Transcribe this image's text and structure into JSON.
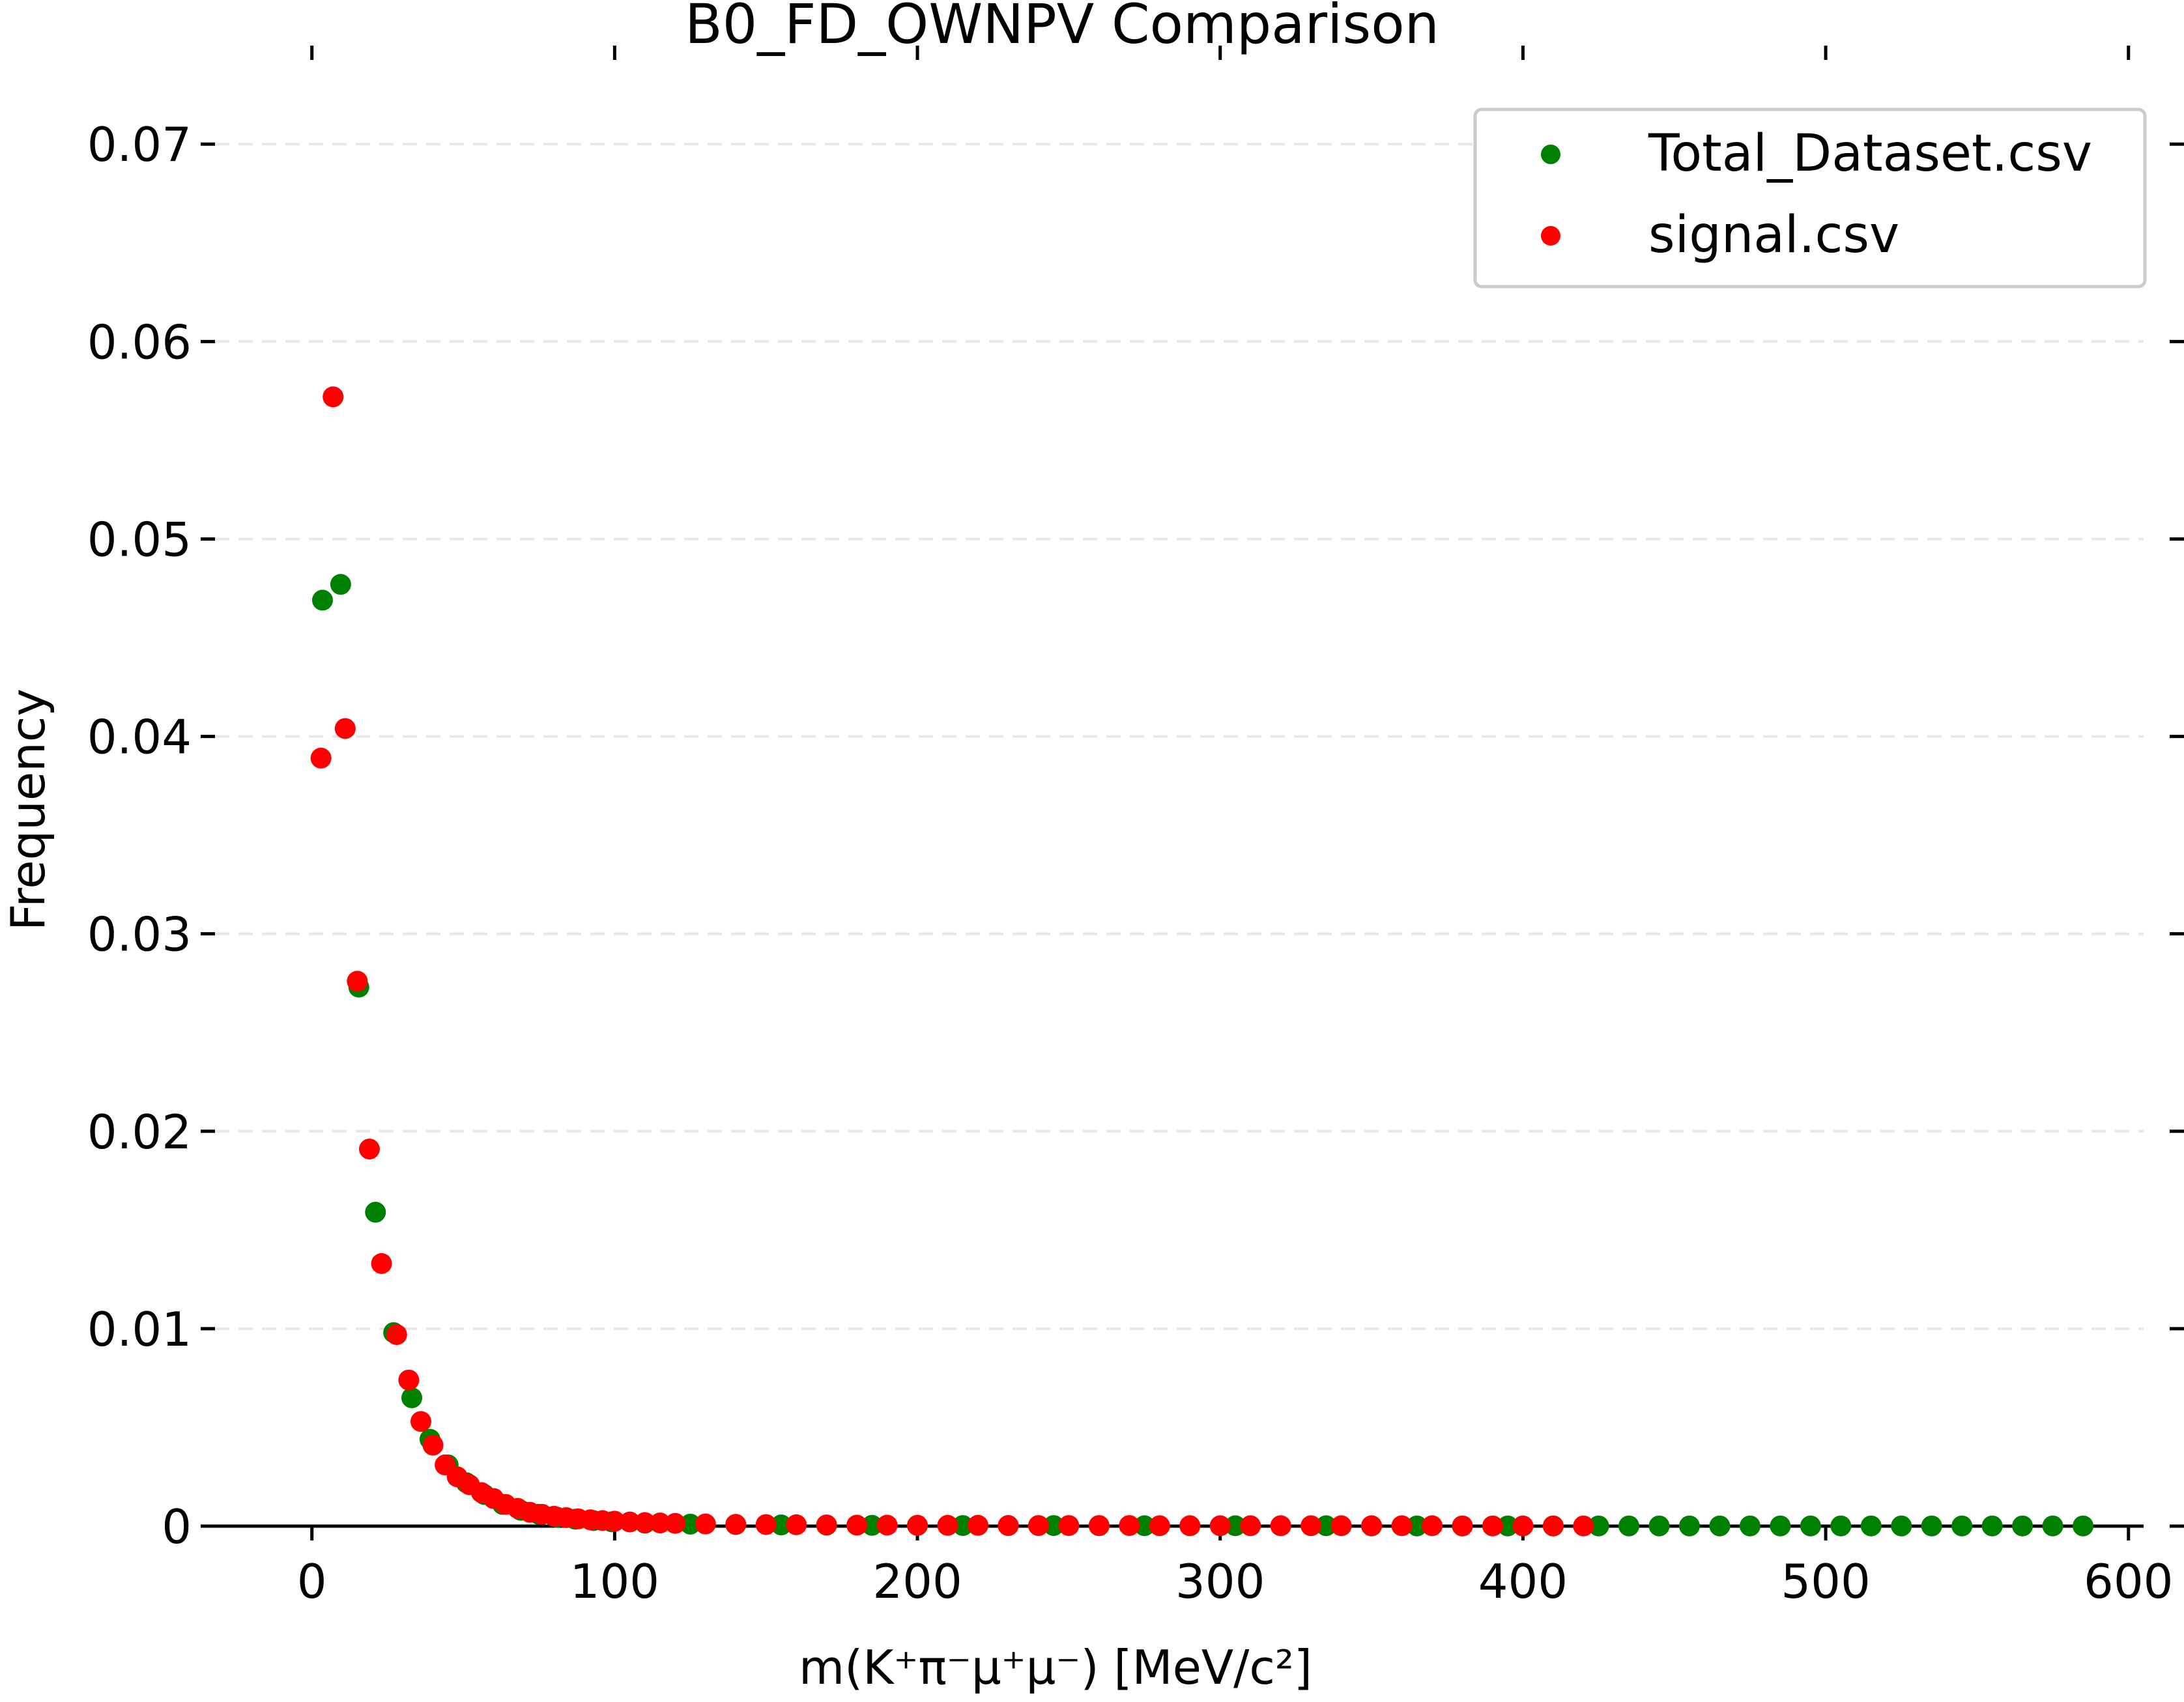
{
  "chart_data": {
    "type": "scatter",
    "title": "B0_FD_OWNPV Comparison",
    "xlabel": "m(K⁺π⁻μ⁺μ⁻) [MeV/c²]",
    "ylabel": "Frequency",
    "xlim": [
      -32,
      605
    ],
    "ylim": [
      0,
      0.074
    ],
    "xticks": [
      0,
      100,
      200,
      300,
      400,
      500,
      600
    ],
    "xtick_labels": [
      "0",
      "100",
      "200",
      "300",
      "400",
      "500",
      "600"
    ],
    "yticks": [
      0,
      0.01,
      0.02,
      0.03,
      0.04,
      0.05,
      0.06,
      0.07
    ],
    "ytick_labels": [
      "0",
      "0.01",
      "0.02",
      "0.03",
      "0.04",
      "0.05",
      "0.06",
      "0.07"
    ],
    "grid": "y-dashed",
    "legend_position": "top-right",
    "series": [
      {
        "name": "Total_Dataset.csv",
        "color": "#008000",
        "x": [
          3.5,
          9.5,
          15.5,
          21,
          27,
          33,
          39,
          45,
          51,
          57,
          63,
          69,
          75,
          81,
          87,
          93,
          99,
          110,
          125,
          140,
          155,
          170,
          185,
          200,
          215,
          230,
          245,
          260,
          275,
          290,
          305,
          320,
          335,
          350,
          365,
          380,
          395,
          410,
          425,
          435,
          445,
          455,
          465,
          475,
          485,
          495,
          505,
          515,
          525,
          535,
          545,
          555,
          565,
          575,
          585
        ],
        "y": [
          0.0469,
          0.0477,
          0.0273,
          0.0159,
          0.0098,
          0.0065,
          0.0044,
          0.0031,
          0.0022,
          0.0016,
          0.0011,
          0.0008,
          0.0006,
          0.00045,
          0.00035,
          0.00028,
          0.00022,
          0.00015,
          0.0001,
          8e-05,
          6e-05,
          5e-05,
          4e-05,
          4e-05,
          3e-05,
          3e-05,
          3e-05,
          2e-05,
          2e-05,
          2e-05,
          2e-05,
          2e-05,
          2e-05,
          1e-05,
          1e-05,
          1e-05,
          1e-05,
          1e-05,
          1e-05,
          1e-05,
          1e-05,
          1e-05,
          1e-05,
          1e-05,
          1e-05,
          1e-05,
          1e-05,
          1e-05,
          1e-05,
          1e-05,
          1e-05,
          1e-05,
          1e-05,
          1e-05,
          1e-05
        ]
      },
      {
        "name": "signal.csv",
        "color": "#ff0000",
        "x": [
          3,
          7,
          11,
          15,
          19,
          23,
          28,
          32,
          36,
          40,
          44,
          48,
          52,
          56,
          60,
          64,
          68,
          72,
          76,
          80,
          84,
          88,
          92,
          96,
          100,
          105,
          110,
          115,
          120,
          130,
          140,
          150,
          160,
          170,
          180,
          190,
          200,
          210,
          220,
          230,
          240,
          250,
          260,
          270,
          280,
          290,
          300,
          310,
          320,
          330,
          340,
          350,
          360,
          370,
          380,
          390,
          400,
          410,
          420
        ],
        "y": [
          0.0389,
          0.0572,
          0.0404,
          0.0276,
          0.0191,
          0.0133,
          0.0097,
          0.0074,
          0.0053,
          0.0041,
          0.0031,
          0.0025,
          0.0021,
          0.0017,
          0.0014,
          0.0011,
          0.0009,
          0.0007,
          0.0006,
          0.0005,
          0.00043,
          0.00037,
          0.00032,
          0.00028,
          0.00025,
          0.00021,
          0.00018,
          0.00016,
          0.00014,
          0.00011,
          9e-05,
          8e-05,
          7e-05,
          6e-05,
          5e-05,
          5e-05,
          4e-05,
          4e-05,
          4e-05,
          3e-05,
          3e-05,
          3e-05,
          3e-05,
          3e-05,
          2e-05,
          2e-05,
          2e-05,
          2e-05,
          2e-05,
          2e-05,
          2e-05,
          2e-05,
          2e-05,
          2e-05,
          1e-05,
          1e-05,
          1e-05,
          1e-05,
          1e-05
        ]
      }
    ]
  }
}
